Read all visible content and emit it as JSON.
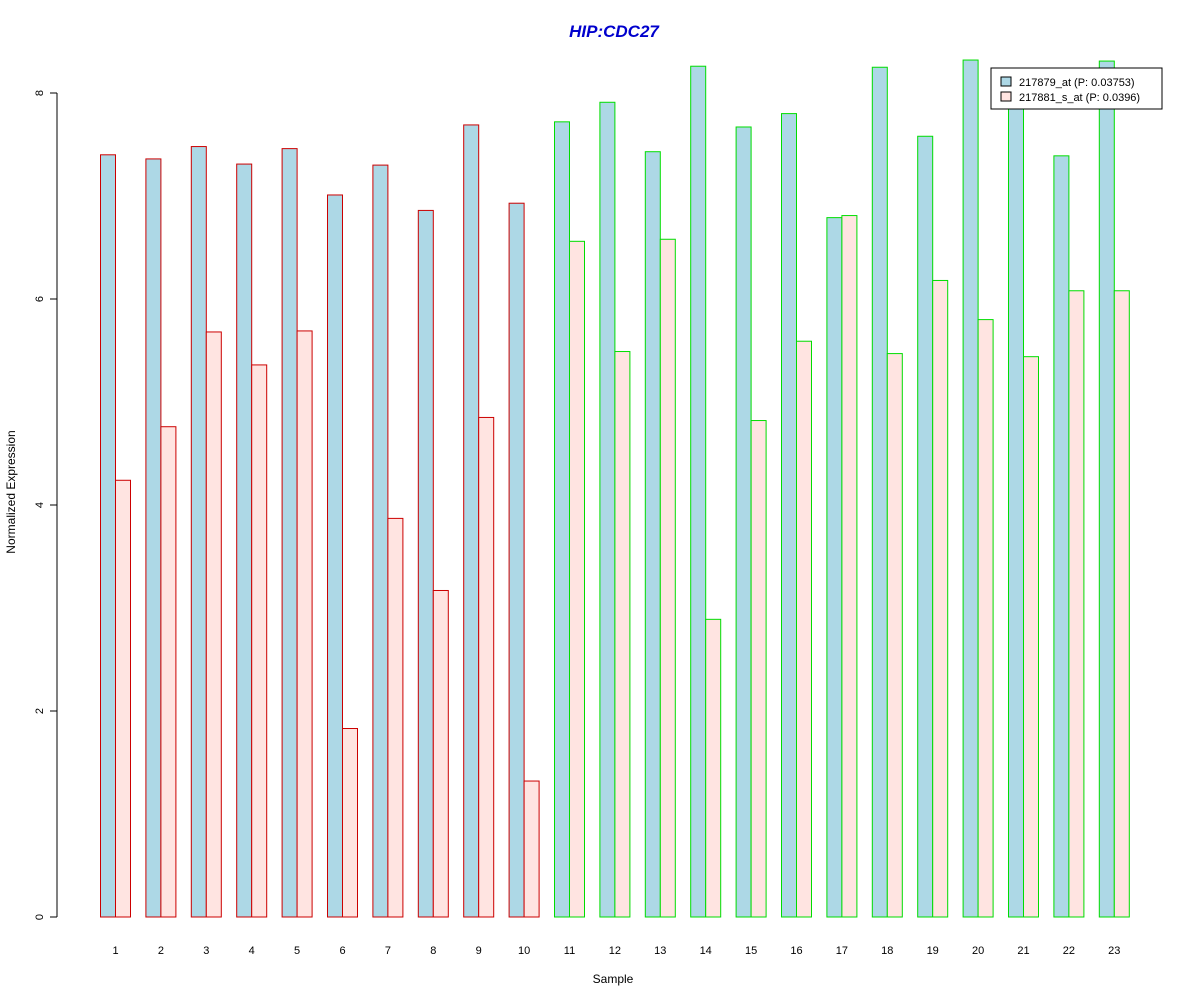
{
  "chart_data": {
    "type": "bar",
    "title": "HIP:CDC27",
    "xlabel": "Sample",
    "ylabel": "Normalized Expression",
    "ylim": [
      0,
      8.2
    ],
    "yticks": [
      0,
      2,
      4,
      6,
      8
    ],
    "grid": false,
    "legend_position": "top-right",
    "categories": [
      "1",
      "2",
      "3",
      "4",
      "5",
      "6",
      "7",
      "8",
      "9",
      "10",
      "11",
      "12",
      "13",
      "14",
      "15",
      "16",
      "17",
      "18",
      "19",
      "20",
      "21",
      "22",
      "23"
    ],
    "series": [
      {
        "name": "217879_at (P: 0.03753)",
        "fill": "#add8e6",
        "values": [
          7.4,
          7.36,
          7.48,
          7.31,
          7.46,
          7.01,
          7.3,
          6.86,
          7.69,
          6.93,
          7.72,
          7.91,
          7.43,
          8.26,
          7.67,
          7.8,
          6.79,
          8.25,
          7.58,
          8.32,
          7.95,
          7.39,
          8.31
        ]
      },
      {
        "name": "217881_s_at (P: 0.0396)",
        "fill": "#ffe4e1",
        "values": [
          4.24,
          4.76,
          5.68,
          5.36,
          5.69,
          1.83,
          3.87,
          3.17,
          4.85,
          1.32,
          6.56,
          5.49,
          6.58,
          2.89,
          4.82,
          5.59,
          6.81,
          5.47,
          6.18,
          5.8,
          5.44,
          6.08,
          6.08
        ]
      }
    ],
    "group_border_colors": [
      "#cc0000",
      "#cc0000",
      "#cc0000",
      "#cc0000",
      "#cc0000",
      "#cc0000",
      "#cc0000",
      "#cc0000",
      "#cc0000",
      "#cc0000",
      "#00dd00",
      "#00dd00",
      "#00dd00",
      "#00dd00",
      "#00dd00",
      "#00dd00",
      "#00dd00",
      "#00dd00",
      "#00dd00",
      "#00dd00",
      "#00dd00",
      "#00dd00",
      "#00dd00"
    ],
    "colors": {
      "title": "#0000cd",
      "axis": "#000000"
    }
  }
}
